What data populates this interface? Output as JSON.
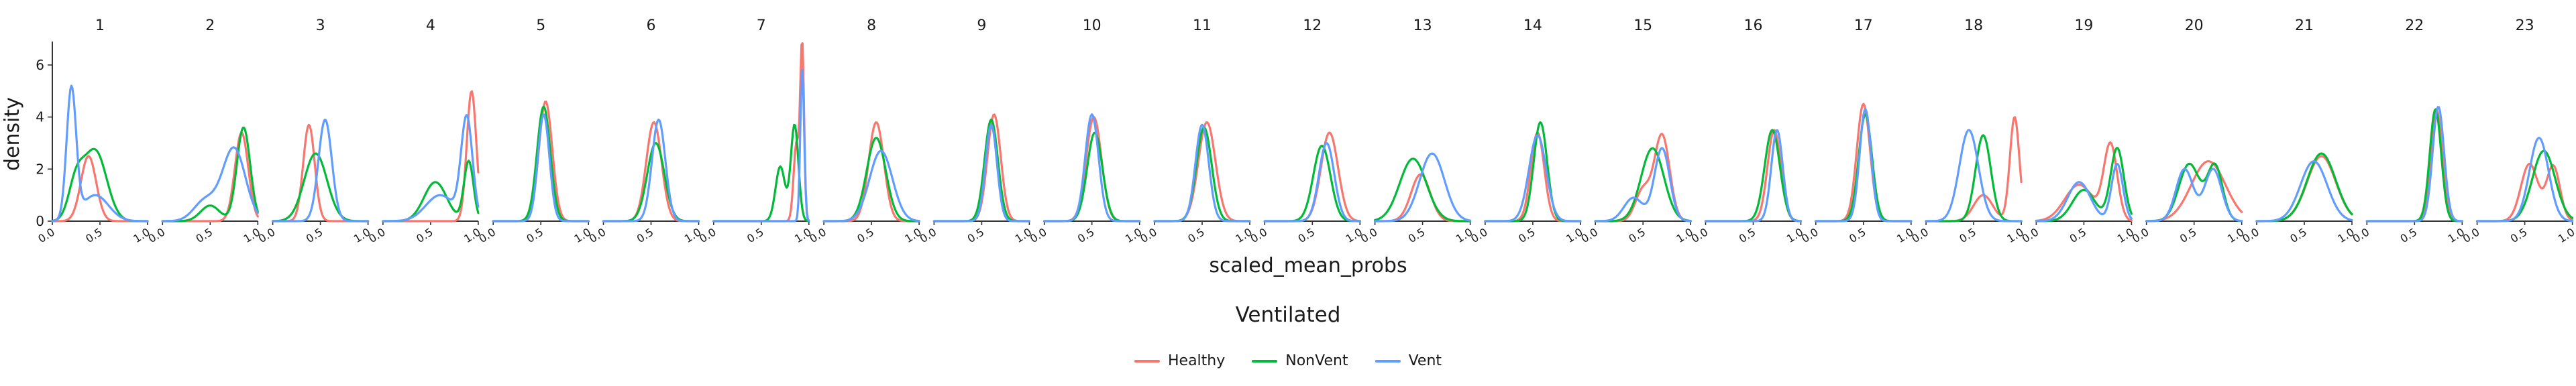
{
  "chart_data": {
    "type": "line",
    "facet_labels": [
      "1",
      "2",
      "3",
      "4",
      "5",
      "6",
      "7",
      "8",
      "9",
      "10",
      "11",
      "12",
      "13",
      "14",
      "15",
      "16",
      "17",
      "18",
      "19",
      "20",
      "21",
      "22",
      "23"
    ],
    "xlabel": "scaled_mean_probs",
    "ylabel": "density",
    "xlim": [
      0,
      1
    ],
    "ylim": [
      0,
      6.9
    ],
    "x_ticks": [
      "0.0",
      "0.5",
      "1.0"
    ],
    "y_ticks": [
      "0",
      "2",
      "4",
      "6"
    ],
    "grid": false,
    "legend": {
      "title": "Ventilated",
      "position": "bottom",
      "items": [
        "Healthy",
        "NonVent",
        "Vent"
      ]
    },
    "colors": {
      "Healthy": "#F8766D",
      "NonVent": "#00BA38",
      "Vent": "#619CFF"
    },
    "series_peaks": {
      "Healthy": [
        [
          [
            0.38,
            2.5,
            0.08
          ]
        ],
        [
          [
            0.83,
            3.4,
            0.07
          ]
        ],
        [
          [
            0.38,
            3.7,
            0.06
          ]
        ],
        [
          [
            0.93,
            5.0,
            0.05
          ]
        ],
        [
          [
            0.55,
            4.6,
            0.07
          ]
        ],
        [
          [
            0.53,
            3.8,
            0.08
          ]
        ],
        [
          [
            0.93,
            6.6,
            0.02
          ],
          [
            0.87,
            3.0,
            0.03
          ]
        ],
        [
          [
            0.55,
            3.8,
            0.08
          ]
        ],
        [
          [
            0.63,
            4.1,
            0.07
          ]
        ],
        [
          [
            0.52,
            4.0,
            0.08
          ]
        ],
        [
          [
            0.55,
            3.8,
            0.09
          ]
        ],
        [
          [
            0.68,
            3.4,
            0.09
          ]
        ],
        [
          [
            0.48,
            1.8,
            0.1
          ]
        ],
        [
          [
            0.55,
            3.4,
            0.07
          ]
        ],
        [
          [
            0.7,
            3.3,
            0.08
          ],
          [
            0.5,
            1.2,
            0.08
          ]
        ],
        [
          [
            0.72,
            3.5,
            0.07
          ]
        ],
        [
          [
            0.5,
            4.5,
            0.07
          ]
        ],
        [
          [
            0.93,
            4.0,
            0.05
          ],
          [
            0.6,
            1.0,
            0.1
          ]
        ],
        [
          [
            0.78,
            2.9,
            0.07
          ],
          [
            0.45,
            1.4,
            0.15
          ]
        ],
        [
          [
            0.65,
            2.3,
            0.18
          ]
        ],
        [
          [
            0.68,
            2.5,
            0.15
          ]
        ],
        [
          [
            0.73,
            4.3,
            0.06
          ]
        ],
        [
          [
            0.55,
            2.2,
            0.09
          ],
          [
            0.8,
            2.1,
            0.07
          ]
        ]
      ],
      "NonVent": [
        [
          [
            0.45,
            2.7,
            0.12
          ],
          [
            0.25,
            1.4,
            0.08
          ]
        ],
        [
          [
            0.85,
            3.6,
            0.07
          ],
          [
            0.5,
            0.6,
            0.1
          ]
        ],
        [
          [
            0.45,
            2.6,
            0.12
          ]
        ],
        [
          [
            0.9,
            2.3,
            0.05
          ],
          [
            0.55,
            1.5,
            0.12
          ]
        ],
        [
          [
            0.53,
            4.4,
            0.07
          ]
        ],
        [
          [
            0.55,
            3.0,
            0.09
          ]
        ],
        [
          [
            0.85,
            3.7,
            0.04
          ],
          [
            0.7,
            2.1,
            0.05
          ]
        ],
        [
          [
            0.55,
            3.2,
            0.1
          ]
        ],
        [
          [
            0.6,
            3.9,
            0.07
          ]
        ],
        [
          [
            0.53,
            3.4,
            0.08
          ]
        ],
        [
          [
            0.52,
            3.6,
            0.08
          ]
        ],
        [
          [
            0.6,
            2.9,
            0.09
          ]
        ],
        [
          [
            0.4,
            2.4,
            0.14
          ]
        ],
        [
          [
            0.58,
            3.8,
            0.07
          ]
        ],
        [
          [
            0.6,
            2.8,
            0.12
          ]
        ],
        [
          [
            0.7,
            3.5,
            0.08
          ]
        ],
        [
          [
            0.52,
            4.1,
            0.07
          ]
        ],
        [
          [
            0.6,
            3.3,
            0.08
          ]
        ],
        [
          [
            0.85,
            2.8,
            0.07
          ],
          [
            0.5,
            1.2,
            0.12
          ]
        ],
        [
          [
            0.45,
            2.2,
            0.11
          ],
          [
            0.72,
            2.1,
            0.08
          ]
        ],
        [
          [
            0.68,
            2.6,
            0.15
          ]
        ],
        [
          [
            0.72,
            4.3,
            0.06
          ]
        ],
        [
          [
            0.7,
            2.7,
            0.12
          ]
        ]
      ],
      "Vent": [
        [
          [
            0.2,
            5.0,
            0.05
          ],
          [
            0.45,
            1.0,
            0.14
          ]
        ],
        [
          [
            0.75,
            2.8,
            0.12
          ],
          [
            0.45,
            0.8,
            0.12
          ]
        ],
        [
          [
            0.55,
            3.9,
            0.07
          ]
        ],
        [
          [
            0.88,
            3.9,
            0.06
          ],
          [
            0.6,
            1.0,
            0.15
          ]
        ],
        [
          [
            0.53,
            4.1,
            0.06
          ]
        ],
        [
          [
            0.58,
            3.9,
            0.07
          ]
        ],
        [
          [
            0.93,
            5.9,
            0.02
          ]
        ],
        [
          [
            0.6,
            2.7,
            0.12
          ]
        ],
        [
          [
            0.6,
            3.7,
            0.06
          ]
        ],
        [
          [
            0.5,
            4.1,
            0.07
          ]
        ],
        [
          [
            0.5,
            3.7,
            0.07
          ]
        ],
        [
          [
            0.65,
            3.0,
            0.08
          ]
        ],
        [
          [
            0.6,
            2.6,
            0.13
          ]
        ],
        [
          [
            0.55,
            3.3,
            0.09
          ]
        ],
        [
          [
            0.7,
            2.8,
            0.08
          ],
          [
            0.4,
            0.9,
            0.1
          ]
        ],
        [
          [
            0.75,
            3.5,
            0.06
          ]
        ],
        [
          [
            0.52,
            4.3,
            0.06
          ]
        ],
        [
          [
            0.45,
            3.5,
            0.1
          ]
        ],
        [
          [
            0.45,
            1.5,
            0.12
          ],
          [
            0.85,
            2.2,
            0.06
          ]
        ],
        [
          [
            0.4,
            2.0,
            0.09
          ],
          [
            0.7,
            2.0,
            0.09
          ]
        ],
        [
          [
            0.6,
            2.3,
            0.14
          ]
        ],
        [
          [
            0.75,
            4.4,
            0.06
          ]
        ],
        [
          [
            0.65,
            3.2,
            0.1
          ]
        ]
      ]
    }
  }
}
